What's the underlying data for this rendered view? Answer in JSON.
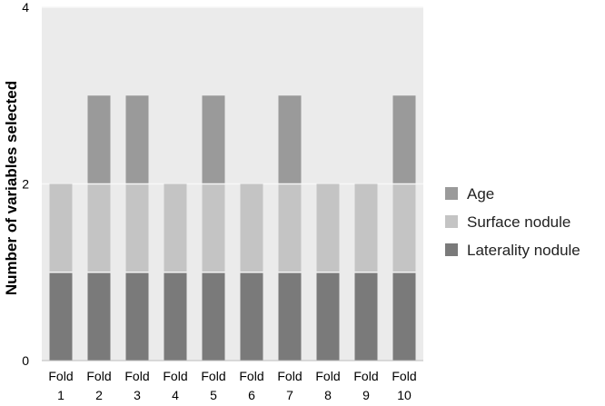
{
  "chart_data": {
    "type": "bar",
    "stacked": true,
    "categories": [
      [
        "Fold",
        "1"
      ],
      [
        "Fold",
        "2"
      ],
      [
        "Fold",
        "3"
      ],
      [
        "Fold",
        "4"
      ],
      [
        "Fold",
        "5"
      ],
      [
        "Fold",
        "6"
      ],
      [
        "Fold",
        "7"
      ],
      [
        "Fold",
        "8"
      ],
      [
        "Fold",
        "9"
      ],
      [
        "Fold",
        "10"
      ]
    ],
    "series": [
      {
        "name": "Laterality nodule",
        "values": [
          1,
          1,
          1,
          1,
          1,
          1,
          1,
          1,
          1,
          1
        ],
        "color": "#7a7a7a"
      },
      {
        "name": "Surface nodule",
        "values": [
          1,
          1,
          1,
          1,
          1,
          1,
          1,
          1,
          1,
          1
        ],
        "color": "#c4c4c4"
      },
      {
        "name": "Age",
        "values": [
          0,
          1,
          1,
          0,
          1,
          0,
          1,
          0,
          0,
          1
        ],
        "color": "#9a9a9a"
      }
    ],
    "ylabel": "Number of variables selected",
    "xlabel": "",
    "ylim": [
      0,
      4
    ],
    "yticks": [
      0,
      2,
      4
    ],
    "grid": true,
    "legend_position": "right",
    "legend_order": [
      "Age",
      "Surface nodule",
      "Laterality nodule"
    ],
    "plot_background": "#ebebeb",
    "gridline_color": "#f7f7f7"
  }
}
